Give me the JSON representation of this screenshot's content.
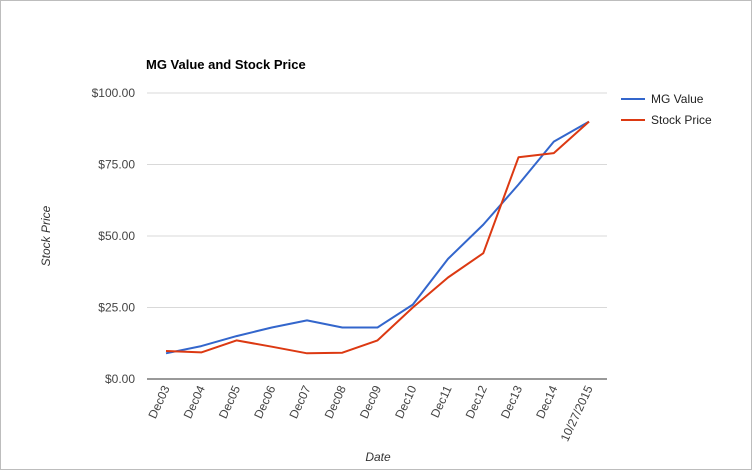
{
  "chart_data": {
    "type": "line",
    "title": "MG Value and Stock Price",
    "xlabel": "Date",
    "ylabel": "Stock Price",
    "categories": [
      "Dec03",
      "Dec04",
      "Dec05",
      "Dec06",
      "Dec07",
      "Dec08",
      "Dec09",
      "Dec10",
      "Dec11",
      "Dec12",
      "Dec13",
      "Dec14",
      "10/27/2015"
    ],
    "series": [
      {
        "name": "MG Value",
        "color": "#3366cc",
        "values": [
          9.0,
          11.5,
          15.0,
          18.0,
          20.5,
          18.0,
          18.0,
          26.0,
          42.0,
          54.0,
          68.0,
          83.0,
          90.0
        ]
      },
      {
        "name": "Stock Price",
        "color": "#dc3912",
        "values": [
          9.8,
          9.3,
          13.5,
          11.3,
          9.0,
          9.2,
          13.5,
          25.0,
          35.5,
          44.0,
          77.5,
          79.0,
          90.0
        ]
      }
    ],
    "ylim": [
      0,
      100
    ],
    "yticks": [
      0,
      25,
      50,
      75,
      100
    ],
    "ytick_labels": [
      "$0.00",
      "$25.00",
      "$50.00",
      "$75.00",
      "$100.00"
    ],
    "grid": true,
    "legend": "right"
  }
}
